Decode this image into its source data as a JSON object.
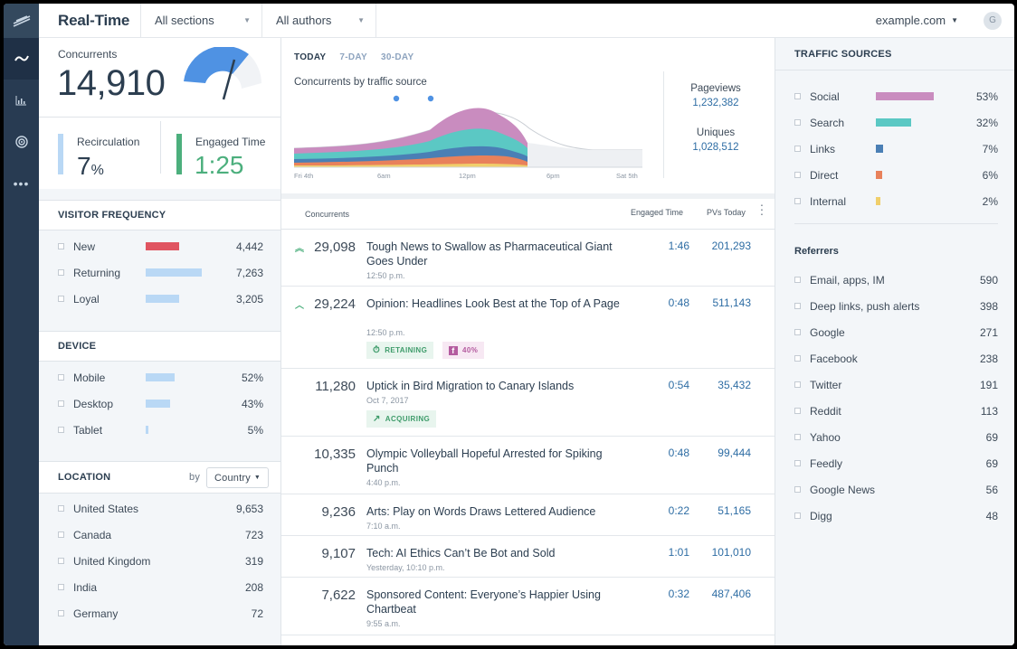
{
  "header": {
    "title": "Real-Time",
    "sections_label": "All sections",
    "authors_label": "All authors",
    "domain": "example.com",
    "avatar_initial": "G"
  },
  "rail": {
    "icons": [
      "chartbeat-logo-icon",
      "realtime-icon",
      "bar-chart-icon",
      "target-icon",
      "more-icon"
    ]
  },
  "summary": {
    "concurrents_label": "Concurrents",
    "concurrents_value": "14,910",
    "recirculation_label": "Recirculation",
    "recirculation_value": "7",
    "recirculation_unit": "%",
    "engaged_label": "Engaged Time",
    "engaged_value": "1:25"
  },
  "visitor_frequency": {
    "title": "VISITOR FREQUENCY",
    "items": [
      {
        "label": "New",
        "value": "4,442",
        "fraction": 0.6,
        "color": "#e05561"
      },
      {
        "label": "Returning",
        "value": "7,263",
        "fraction": 1.0,
        "color": "#b9d8f5"
      },
      {
        "label": "Loyal",
        "value": "3,205",
        "fraction": 0.6,
        "color": "#b9d8f5"
      }
    ]
  },
  "device": {
    "title": "DEVICE",
    "items": [
      {
        "label": "Mobile",
        "value": "52%",
        "fraction": 0.52,
        "color": "#b9d8f5"
      },
      {
        "label": "Desktop",
        "value": "43%",
        "fraction": 0.43,
        "color": "#b9d8f5"
      },
      {
        "label": "Tablet",
        "value": "5%",
        "fraction": 0.05,
        "color": "#b9d8f5"
      }
    ]
  },
  "location": {
    "title": "LOCATION",
    "by_label": "by",
    "by_value": "Country",
    "items": [
      {
        "label": "United States",
        "value": "9,653"
      },
      {
        "label": "Canada",
        "value": "723"
      },
      {
        "label": "United Kingdom",
        "value": "319"
      },
      {
        "label": "India",
        "value": "208"
      },
      {
        "label": "Germany",
        "value": "72"
      }
    ]
  },
  "main": {
    "tabs": [
      "TODAY",
      "7-DAY",
      "30-DAY"
    ],
    "chart_title": "Concurrents by traffic source",
    "pageviews_label": "Pageviews",
    "pageviews_value": "1,232,382",
    "uniques_label": "Uniques",
    "uniques_value": "1,028,512",
    "x_ticks": [
      "Fri 4th",
      "6am",
      "12pm",
      "6pm",
      "Sat 5th"
    ],
    "list_headers": {
      "concurrents": "Concurrents",
      "engaged": "Engaged Time",
      "pvs": "PVs Today"
    },
    "articles": [
      {
        "conc": "29,098",
        "arrow": "double-up",
        "headline": "Tough News to Swallow as Pharmaceutical Giant Goes Under",
        "time": "12:50 p.m.",
        "engaged": "1:46",
        "pvs": "201,293"
      },
      {
        "conc": "29,224",
        "arrow": "up",
        "headline": "Opinion: Headlines Look Best at the Top of A Page",
        "time": "12:50 p.m.",
        "engaged": "0:48",
        "pvs": "511,143",
        "tags": [
          {
            "label": "RETAINING",
            "icon": "stopwatch-icon"
          },
          {
            "label": "40%",
            "icon": "facebook-icon"
          }
        ]
      },
      {
        "conc": "11,280",
        "headline": "Uptick in Bird Migration to Canary Islands",
        "time": "Oct 7, 2017",
        "engaged": "0:54",
        "pvs": "35,432",
        "tags": [
          {
            "label": "ACQUIRING",
            "icon": "arrow-up-right-icon"
          }
        ]
      },
      {
        "conc": "10,335",
        "headline": "Olympic Volleyball Hopeful Arrested for Spiking Punch",
        "time": "4:40 p.m.",
        "engaged": "0:48",
        "pvs": "99,444"
      },
      {
        "conc": "9,236",
        "headline": "Arts: Play on Words Draws Lettered Audience",
        "time": "7:10 a.m.",
        "engaged": "0:22",
        "pvs": "51,165"
      },
      {
        "conc": "9,107",
        "headline": "Tech: AI Ethics Can’t Be Bot and Sold",
        "time": "Yesterday, 10:10 p.m.",
        "engaged": "1:01",
        "pvs": "101,010"
      },
      {
        "conc": "7,622",
        "headline": "Sponsored Content: Everyone’s Happier Using Chartbeat",
        "time": "9:55 a.m.",
        "engaged": "0:32",
        "pvs": "487,406"
      }
    ]
  },
  "traffic_sources": {
    "title": "TRAFFIC SOURCES",
    "items": [
      {
        "label": "Social",
        "value": "53%",
        "fraction": 0.53,
        "color": "#c98cbf"
      },
      {
        "label": "Search",
        "value": "32%",
        "fraction": 0.32,
        "color": "#5bc8c4"
      },
      {
        "label": "Links",
        "value": "7%",
        "fraction": 0.07,
        "color": "#4a7fb5"
      },
      {
        "label": "Direct",
        "value": "6%",
        "fraction": 0.06,
        "color": "#e8815b"
      },
      {
        "label": "Internal",
        "value": "2%",
        "fraction": 0.02,
        "color": "#f0cf6b"
      }
    ]
  },
  "referrers": {
    "title": "Referrers",
    "items": [
      {
        "label": "Email, apps, IM",
        "value": "590"
      },
      {
        "label": "Deep links, push alerts",
        "value": "398"
      },
      {
        "label": "Google",
        "value": "271"
      },
      {
        "label": "Facebook",
        "value": "238"
      },
      {
        "label": "Twitter",
        "value": "191"
      },
      {
        "label": "Reddit",
        "value": "113"
      },
      {
        "label": "Yahoo",
        "value": "69"
      },
      {
        "label": "Feedly",
        "value": "69"
      },
      {
        "label": "Google News",
        "value": "56"
      },
      {
        "label": "Digg",
        "value": "48"
      }
    ]
  },
  "colors": {
    "social": "#c98cbf",
    "search": "#5bc8c4",
    "links": "#4a7fb5",
    "direct": "#e8815b",
    "internal": "#f0cf6b",
    "gauge": "#4f92e3",
    "engaged_green": "#4caf7d",
    "recirc_blue": "#b9d8f5"
  }
}
